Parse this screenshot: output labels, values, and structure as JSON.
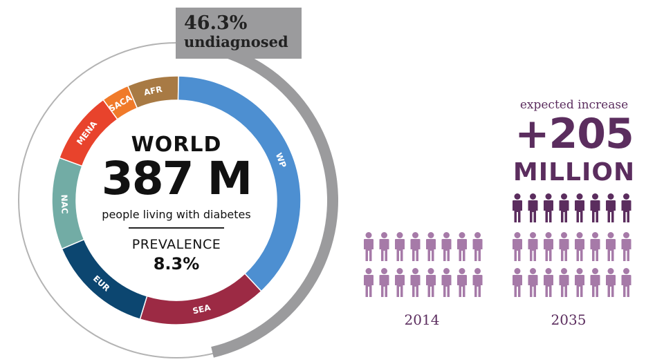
{
  "callout": {
    "percent": "46.3%",
    "label": "undiagnosed"
  },
  "ring": {
    "segments": [
      {
        "code": "AFR",
        "color": "#a87a44"
      },
      {
        "code": "WP",
        "color": "#4d8fd1"
      },
      {
        "code": "SEA",
        "color": "#9c2a44"
      },
      {
        "code": "EUR",
        "color": "#0c4670"
      },
      {
        "code": "NAC",
        "color": "#72aca5"
      },
      {
        "code": "MENA",
        "color": "#e8432c"
      },
      {
        "code": "SACA",
        "color": "#f07a2a"
      }
    ],
    "undiagnosed_fraction": 0.463,
    "undiagnosed_color": "#9b9b9d"
  },
  "center": {
    "world_label": "WORLD",
    "total": "387 M",
    "subtitle": "people living with diabetes",
    "prevalence_label": "PREVALENCE",
    "prevalence_value": "8.3%"
  },
  "increase": {
    "label": "expected increase",
    "value": "+205",
    "unit": "MILLION"
  },
  "years": {
    "left": "2014",
    "right": "2035"
  },
  "figures": {
    "columns": 8,
    "rows_2014": 2,
    "rows_2035_extra": 1,
    "light_color": "#a67aa8",
    "dark_color": "#5b2d5e"
  }
}
